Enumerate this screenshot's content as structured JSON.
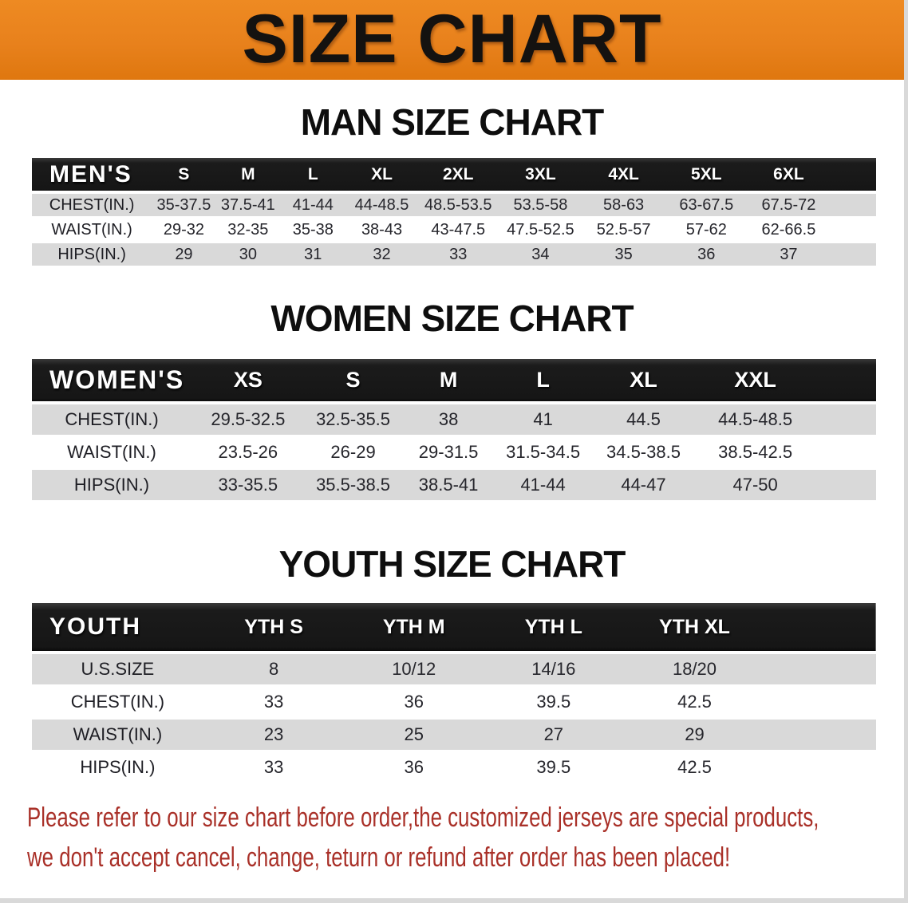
{
  "banner": {
    "title": "SIZE CHART",
    "bg_color": "#e8811c",
    "text_color": "#141210"
  },
  "sections": [
    {
      "id": "men",
      "heading": "MAN SIZE CHART",
      "table": {
        "header_label": "MEN'S",
        "columns": [
          "S",
          "M",
          "L",
          "XL",
          "2XL",
          "3XL",
          "4XL",
          "5XL",
          "6XL"
        ],
        "rows": [
          {
            "label": "CHEST(IN.)",
            "values": [
              "35-37.5",
              "37.5-41",
              "41-44",
              "44-48.5",
              "48.5-53.5",
              "53.5-58",
              "58-63",
              "63-67.5",
              "67.5-72"
            ]
          },
          {
            "label": "WAIST(IN.)",
            "values": [
              "29-32",
              "32-35",
              "35-38",
              "38-43",
              "43-47.5",
              "47.5-52.5",
              "52.5-57",
              "57-62",
              "62-66.5"
            ]
          },
          {
            "label": "HIPS(IN.)",
            "values": [
              "29",
              "30",
              "31",
              "32",
              "33",
              "34",
              "35",
              "36",
              "37"
            ]
          }
        ]
      }
    },
    {
      "id": "women",
      "heading": "WOMEN SIZE CHART",
      "table": {
        "header_label": "WOMEN'S",
        "columns": [
          "XS",
          "S",
          "M",
          "L",
          "XL",
          "XXL"
        ],
        "rows": [
          {
            "label": "CHEST(IN.)",
            "values": [
              "29.5-32.5",
              "32.5-35.5",
              "38",
              "41",
              "44.5",
              "44.5-48.5"
            ]
          },
          {
            "label": "WAIST(IN.)",
            "values": [
              "23.5-26",
              "26-29",
              "29-31.5",
              "31.5-34.5",
              "34.5-38.5",
              "38.5-42.5"
            ]
          },
          {
            "label": "HIPS(IN.)",
            "values": [
              "33-35.5",
              "35.5-38.5",
              "38.5-41",
              "41-44",
              "44-47",
              "47-50"
            ]
          }
        ]
      }
    },
    {
      "id": "youth",
      "heading": "YOUTH SIZE CHART",
      "table": {
        "header_label": "YOUTH",
        "columns": [
          "YTH S",
          "YTH M",
          "YTH L",
          "YTH XL"
        ],
        "rows": [
          {
            "label": "U.S.SIZE",
            "values": [
              "8",
              "10/12",
              "14/16",
              "18/20"
            ]
          },
          {
            "label": "CHEST(IN.)",
            "values": [
              "33",
              "36",
              "39.5",
              "42.5"
            ]
          },
          {
            "label": "WAIST(IN.)",
            "values": [
              "23",
              "25",
              "27",
              "29"
            ]
          },
          {
            "label": "HIPS(IN.)",
            "values": [
              "33",
              "36",
              "39.5",
              "42.5"
            ]
          }
        ]
      }
    }
  ],
  "disclaimer": {
    "line1": "Please refer to our size chart before order,the customized jerseys are special products,",
    "line2": "we don't accept cancel, change, teturn or refund after order has been placed!",
    "color": "#a93028"
  },
  "stripe_color": "#d9d9d9",
  "table_header_color": "#161616"
}
